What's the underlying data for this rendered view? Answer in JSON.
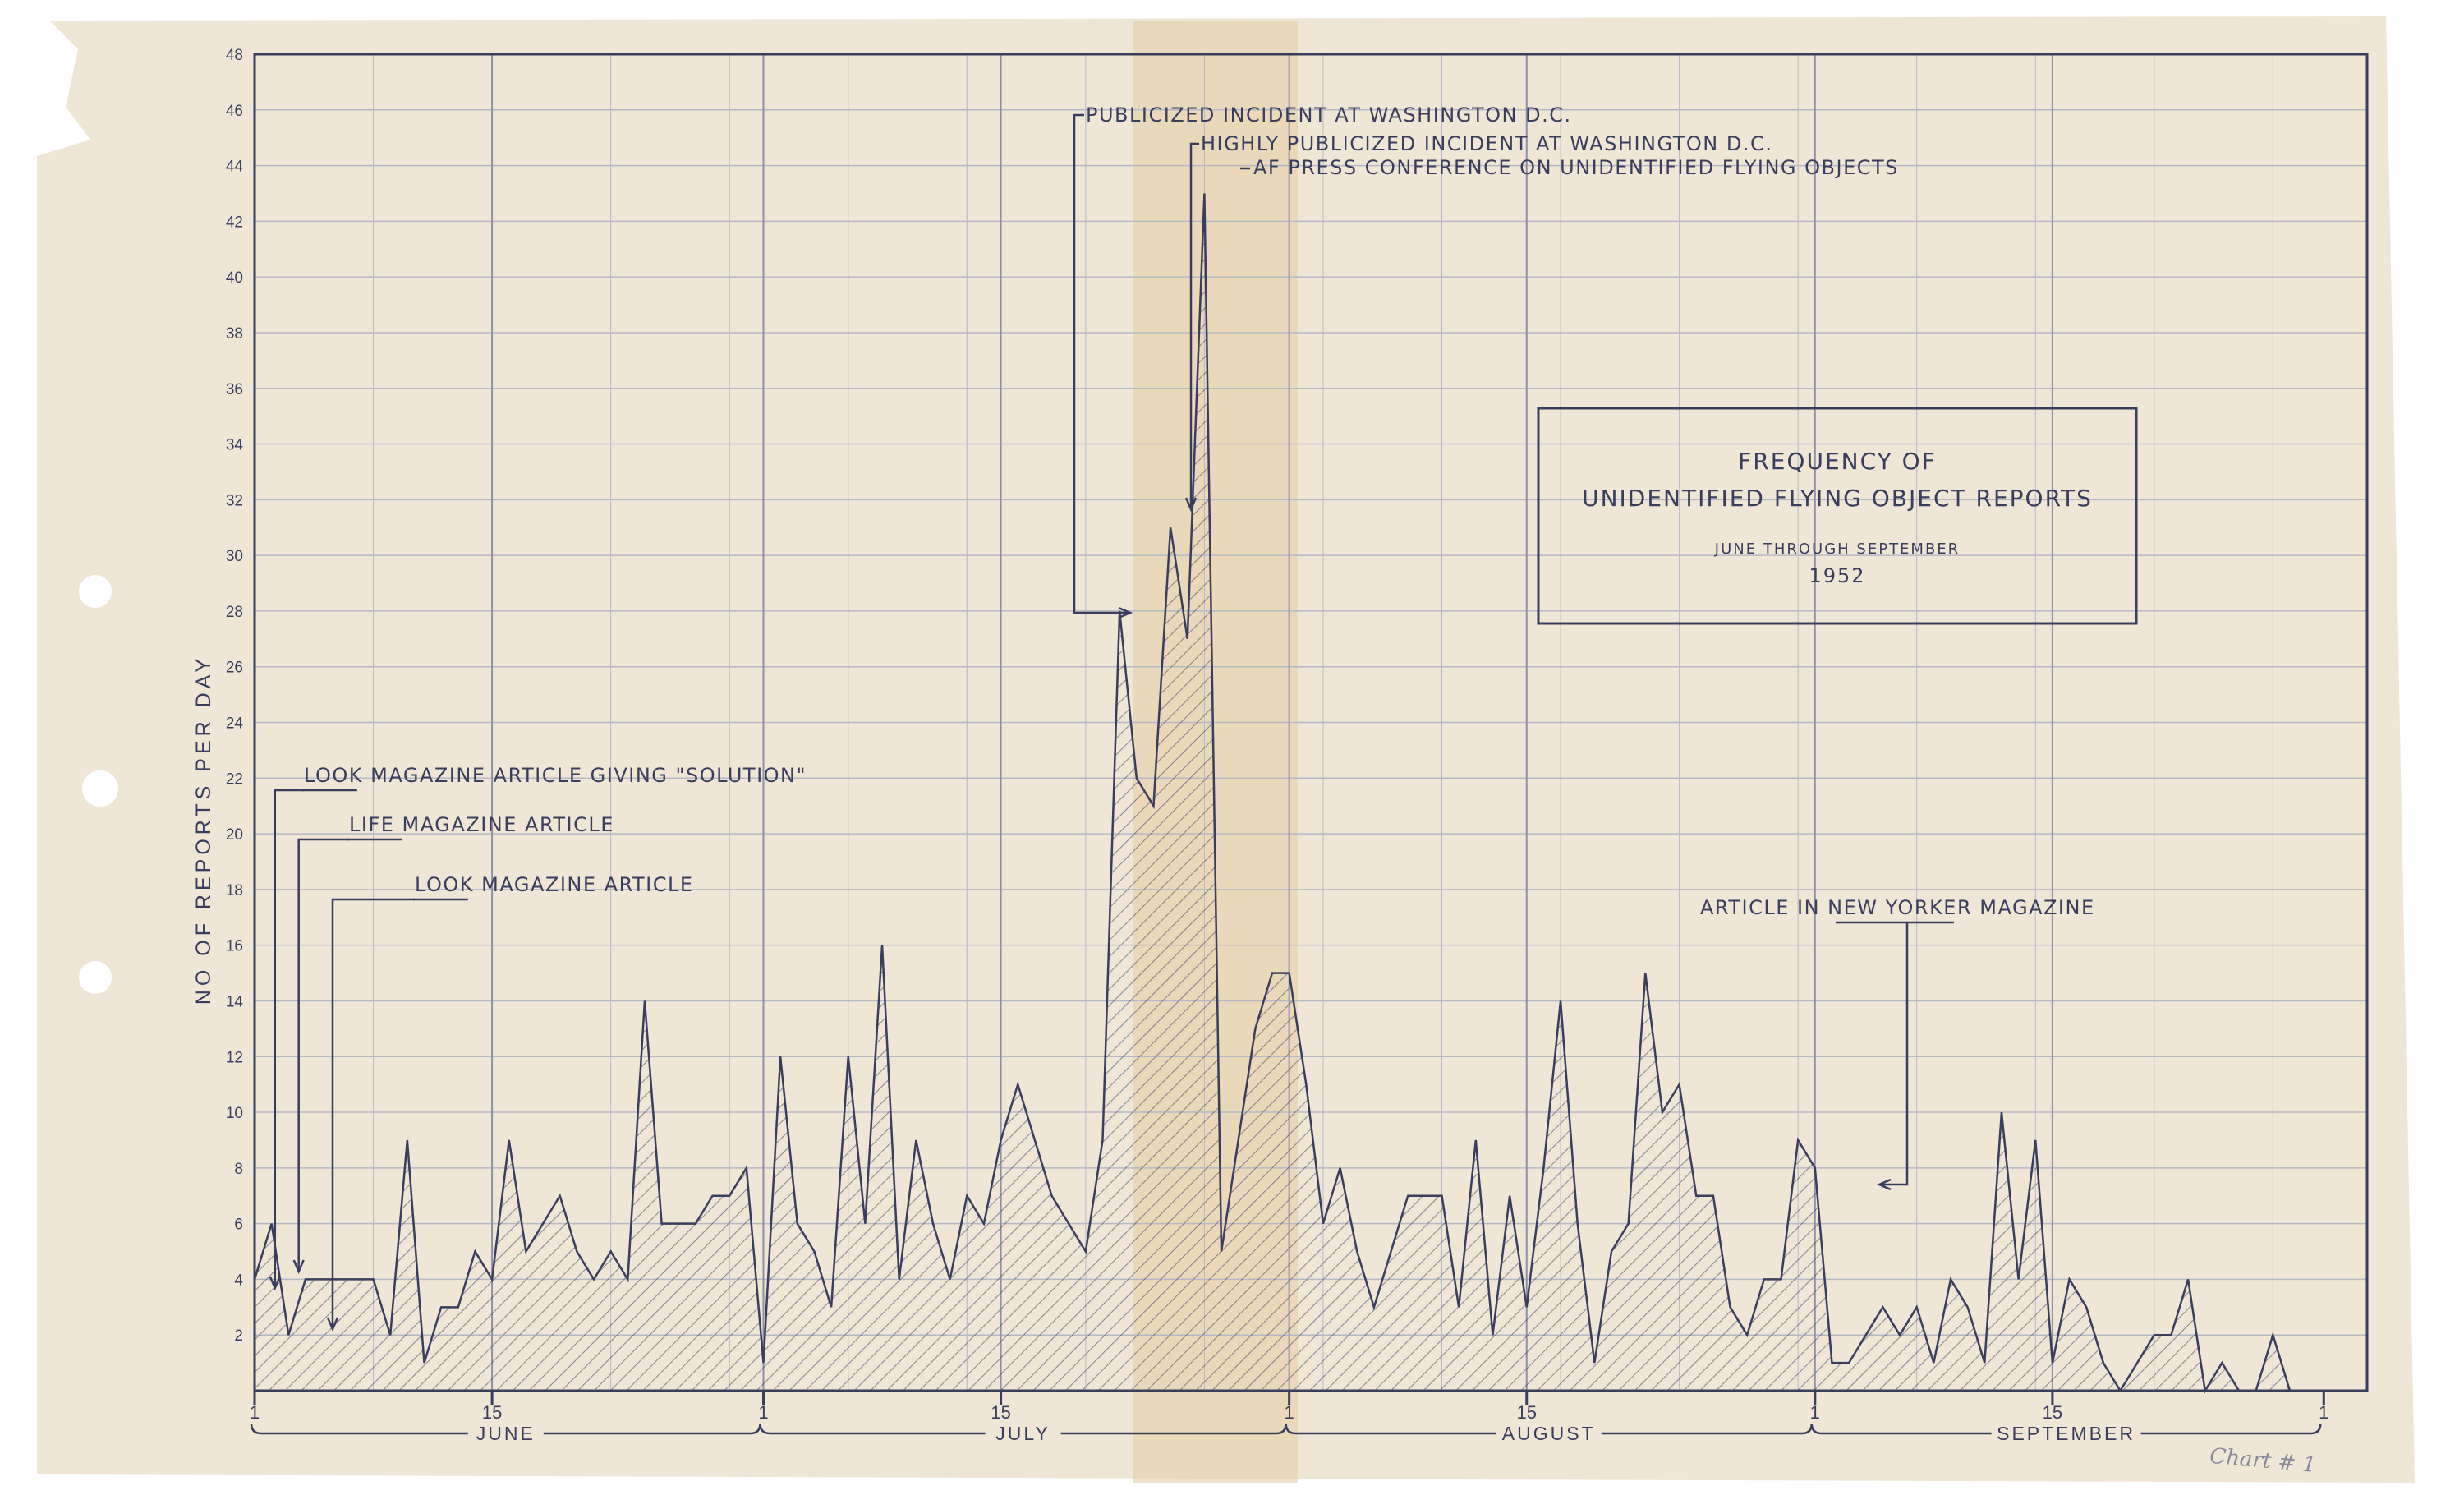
{
  "chart_data": {
    "type": "area",
    "title": "FREQUENCY OF",
    "title_line2": "UNIDENTIFIED FLYING OBJECT REPORTS",
    "subtitle": "JUNE THROUGH SEPTEMBER",
    "year": "1952",
    "ylabel": "NO OF REPORTS PER DAY",
    "xlabel": "",
    "ylim": [
      0,
      48
    ],
    "yticks": [
      2,
      4,
      6,
      8,
      10,
      12,
      14,
      16,
      18,
      20,
      22,
      24,
      26,
      28,
      30,
      32,
      34,
      36,
      38,
      40,
      42,
      44,
      46,
      48
    ],
    "xlim": [
      0,
      122
    ],
    "grid": true,
    "months": [
      {
        "name": "JUNE",
        "start": 0,
        "end": 29,
        "tick_labels": [
          {
            "x": 0,
            "label": "1"
          },
          {
            "x": 14,
            "label": "15"
          }
        ]
      },
      {
        "name": "JULY",
        "start": 30,
        "end": 60,
        "tick_labels": [
          {
            "x": 30,
            "label": "1"
          },
          {
            "x": 44,
            "label": "15"
          }
        ]
      },
      {
        "name": "AUGUST",
        "start": 61,
        "end": 91,
        "tick_labels": [
          {
            "x": 61,
            "label": "1"
          },
          {
            "x": 75,
            "label": "15"
          }
        ]
      },
      {
        "name": "SEPTEMBER",
        "start": 92,
        "end": 121,
        "tick_labels": [
          {
            "x": 92,
            "label": "1"
          },
          {
            "x": 106,
            "label": "15"
          },
          {
            "x": 122,
            "label": "1"
          }
        ]
      }
    ],
    "series": [
      {
        "x": [
          0,
          1,
          2,
          3,
          4,
          5,
          6,
          7,
          8,
          9,
          10,
          11,
          12,
          13,
          14,
          15,
          16,
          17,
          18,
          19,
          20,
          21,
          22,
          23,
          24,
          25,
          26,
          27,
          28,
          29,
          30,
          31,
          32,
          33,
          34,
          35,
          36,
          37,
          38,
          39,
          40,
          41,
          42,
          43,
          44,
          45,
          46,
          47,
          48,
          49,
          50,
          51,
          52,
          53,
          54,
          55,
          56,
          57,
          58,
          59,
          60,
          61,
          62,
          63,
          64,
          65,
          66,
          67,
          68,
          69,
          70,
          71,
          72,
          73,
          74,
          75,
          76,
          77,
          78,
          79,
          80,
          81,
          82,
          83,
          84,
          85,
          86,
          87,
          88,
          89,
          90,
          91,
          92,
          93,
          94,
          95,
          96,
          97,
          98,
          99,
          100,
          101,
          102,
          103,
          104,
          105,
          106,
          107,
          108,
          109,
          110,
          111,
          112,
          113,
          114,
          115,
          116,
          117,
          118,
          119,
          120,
          121
        ],
        "values": [
          4,
          6,
          2,
          4,
          4,
          4,
          4,
          4,
          2,
          9,
          1,
          3,
          3,
          5,
          4,
          9,
          5,
          6,
          7,
          5,
          4,
          5,
          4,
          14,
          6,
          6,
          6,
          7,
          7,
          8,
          1,
          12,
          6,
          5,
          3,
          12,
          6,
          16,
          4,
          9,
          6,
          4,
          7,
          6,
          9,
          11,
          9,
          7,
          6,
          5,
          9,
          28,
          22,
          21,
          31,
          27,
          43,
          5,
          9,
          13,
          15,
          15,
          11,
          6,
          8,
          5,
          3,
          5,
          7,
          7,
          7,
          3,
          9,
          2,
          7,
          3,
          8,
          14,
          6,
          1,
          5,
          6,
          15,
          10,
          11,
          7,
          7,
          3,
          2,
          4,
          4,
          9,
          8,
          1,
          1,
          2,
          3,
          2,
          3,
          1,
          4,
          3,
          1,
          10,
          4,
          9,
          1,
          4,
          3,
          1,
          0,
          1,
          2,
          2,
          4,
          0,
          1,
          0,
          0,
          2,
          0,
          0
        ]
      }
    ],
    "annotations": [
      {
        "text_lead": "LOOK",
        "text_rest": " MAGAZINE ARTICLE GIVING \"SOLUTION\"",
        "target_x": 2
      },
      {
        "text_lead": "LIFE",
        "text_rest": " MAGAZINE ARTICLE",
        "target_x": 5
      },
      {
        "text_lead": "LOOK",
        "text_rest": " MAGAZINE ARTICLE",
        "target_x": 9
      },
      {
        "text_lead": "PUBLICIZED INCIDENT AT WASHINGTON D.C.",
        "text_rest": "",
        "target_x": 52
      },
      {
        "text_lead": "HIGHLY PUBLICIZED INCIDENT AT WASHINGTON D.C.",
        "text_rest": "",
        "target_x": 55
      },
      {
        "text_lead": "AF PRESS CONFERENCE ON UNIDENTIFIED FLYING OBJECTS",
        "text_rest": "",
        "target_x": 58
      },
      {
        "text_pre": "ARTICLE IN ",
        "text_lead": "NEW YORKER",
        "text_rest": " MAGAZINE",
        "target_x": 95
      }
    ],
    "margin_note": "Chart # 1",
    "colors": {
      "ink": "#3b3d5c",
      "paper": "#efe6d6",
      "grid": "#b8b8c4",
      "stain": "#e6cfa6",
      "note": "#8a8a9a"
    }
  }
}
